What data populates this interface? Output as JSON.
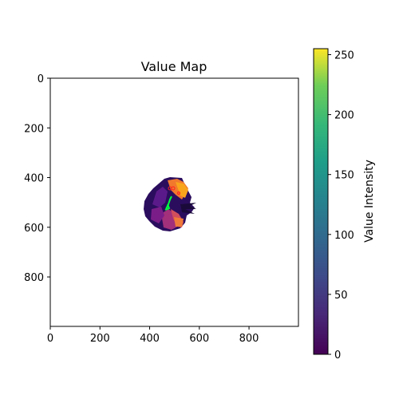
{
  "chart_data": {
    "type": "heatmap",
    "title": "Value Map",
    "xlabel": "",
    "ylabel": "",
    "xlim": [
      0,
      999
    ],
    "ylim": [
      999,
      0
    ],
    "xticks": [
      0,
      200,
      400,
      600,
      800
    ],
    "yticks": [
      0,
      200,
      400,
      600,
      800
    ],
    "colormap": "plasma",
    "colorbar": {
      "label": "Value Intensity",
      "range": [
        0,
        255
      ],
      "ticks": [
        0,
        50,
        100,
        150,
        200,
        250
      ]
    },
    "value_region": {
      "description_center": [
        470,
        520
      ],
      "approx_extent_x": [
        380,
        600
      ],
      "approx_extent_y": [
        410,
        625
      ]
    },
    "overlay_colors": {
      "trajectory": "#00ff40",
      "markers": "#ff2020"
    }
  }
}
